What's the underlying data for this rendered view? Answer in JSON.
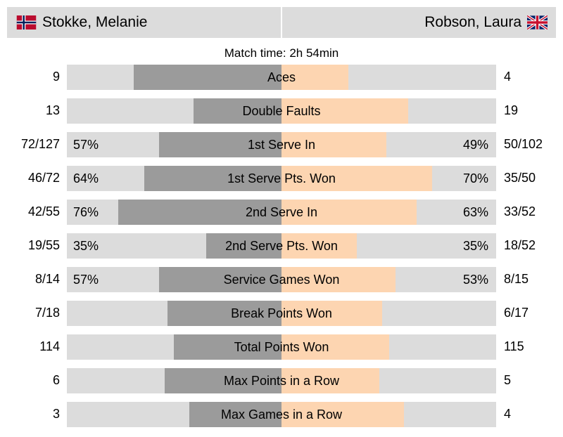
{
  "player_left": {
    "name": "Stokke, Melanie",
    "flag": "norway-flag-icon"
  },
  "player_right": {
    "name": "Robson, Laura",
    "flag": "uk-flag-icon"
  },
  "match_time": "Match time: 2h 54min",
  "colors": {
    "track": "#dcdcdc",
    "left_bar": "#9b9b9b",
    "right_bar": "#fdd5b1"
  },
  "stats": [
    {
      "label": "Aces",
      "left": "9",
      "right": "4",
      "left_fill": 0.69,
      "right_fill": 0.31
    },
    {
      "label": "Double Faults",
      "left": "13",
      "right": "19",
      "left_fill": 0.41,
      "right_fill": 0.59
    },
    {
      "label": "1st Serve In",
      "left": "72/127",
      "right": "50/102",
      "left_pct": "57%",
      "right_pct": "49%",
      "left_fill": 0.57,
      "right_fill": 0.49
    },
    {
      "label": "1st Serve Pts. Won",
      "left": "46/72",
      "right": "35/50",
      "left_pct": "64%",
      "right_pct": "70%",
      "left_fill": 0.64,
      "right_fill": 0.7
    },
    {
      "label": "2nd Serve In",
      "left": "42/55",
      "right": "33/52",
      "left_pct": "76%",
      "right_pct": "63%",
      "left_fill": 0.76,
      "right_fill": 0.63
    },
    {
      "label": "2nd Serve Pts. Won",
      "left": "19/55",
      "right": "18/52",
      "left_pct": "35%",
      "right_pct": "35%",
      "left_fill": 0.35,
      "right_fill": 0.35
    },
    {
      "label": "Service Games Won",
      "left": "8/14",
      "right": "8/15",
      "left_pct": "57%",
      "right_pct": "53%",
      "left_fill": 0.57,
      "right_fill": 0.53
    },
    {
      "label": "Break Points Won",
      "left": "7/18",
      "right": "6/17",
      "left_fill": 0.53,
      "right_fill": 0.47
    },
    {
      "label": "Total Points Won",
      "left": "114",
      "right": "115",
      "left_fill": 0.5,
      "right_fill": 0.5
    },
    {
      "label": "Max Points in a Row",
      "left": "6",
      "right": "5",
      "left_fill": 0.545,
      "right_fill": 0.455
    },
    {
      "label": "Max Games in a Row",
      "left": "3",
      "right": "4",
      "left_fill": 0.43,
      "right_fill": 0.57
    }
  ]
}
